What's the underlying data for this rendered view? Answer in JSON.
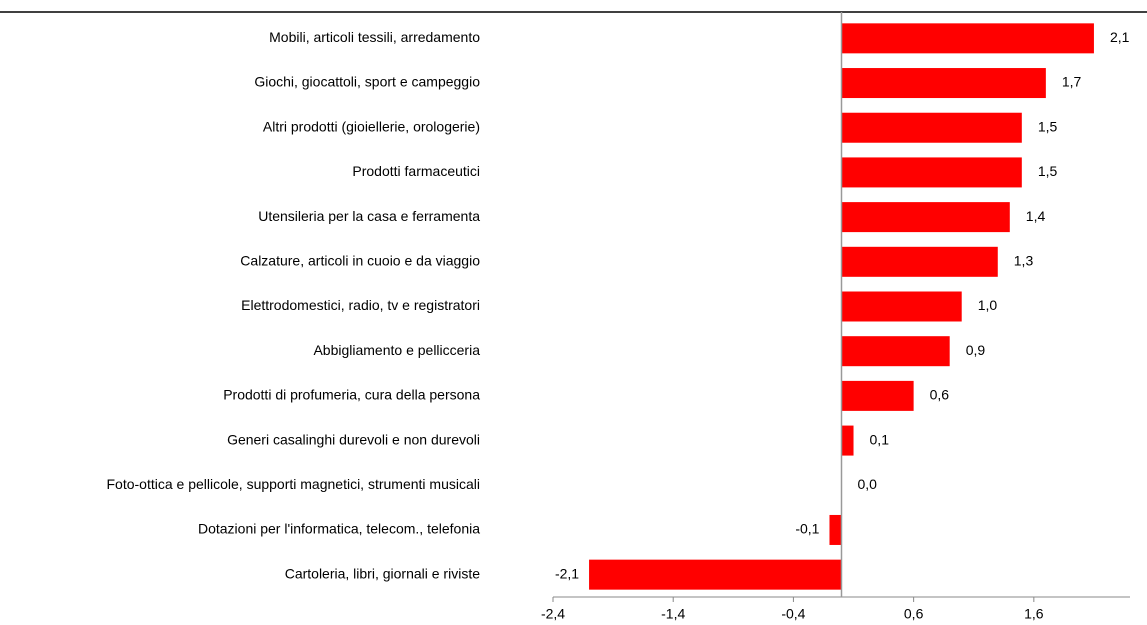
{
  "chart_data": {
    "type": "barh",
    "categories": [
      "Mobili, articoli tessili, arredamento",
      "Giochi, giocattoli, sport e campeggio",
      "Altri prodotti (gioiellerie, orologerie)",
      "Prodotti farmaceutici",
      "Utensileria per la casa e ferramenta",
      "Calzature, articoli in cuoio e da viaggio",
      "Elettrodomestici, radio, tv e registratori",
      "Abbigliamento e pellicceria",
      "Prodotti di profumeria, cura della persona",
      "Generi casalinghi durevoli e non durevoli",
      "Foto-ottica e pellicole, supporti magnetici, strumenti  musicali",
      "Dotazioni per l'informatica, telecom., telefonia",
      "Cartoleria, libri, giornali e riviste"
    ],
    "values": [
      2.1,
      1.7,
      1.5,
      1.5,
      1.4,
      1.3,
      1.0,
      0.9,
      0.6,
      0.1,
      0.0,
      -0.1,
      -2.1
    ],
    "value_labels": [
      "2,1",
      "1,7",
      "1,5",
      "1,5",
      "1,4",
      "1,3",
      "1,0",
      "0,9",
      "0,6",
      "0,1",
      "0,0",
      "-0,1",
      "-2,1"
    ],
    "color": "#ff0000",
    "xlim": [
      -2.4,
      2.4
    ],
    "xticks": [
      {
        "value": -2.4,
        "label": "-2,4"
      },
      {
        "value": -1.4,
        "label": "-1,4"
      },
      {
        "value": -0.4,
        "label": "-0,4"
      },
      {
        "value": 0.6,
        "label": "0,6"
      },
      {
        "value": 1.6,
        "label": "1,6"
      }
    ]
  }
}
